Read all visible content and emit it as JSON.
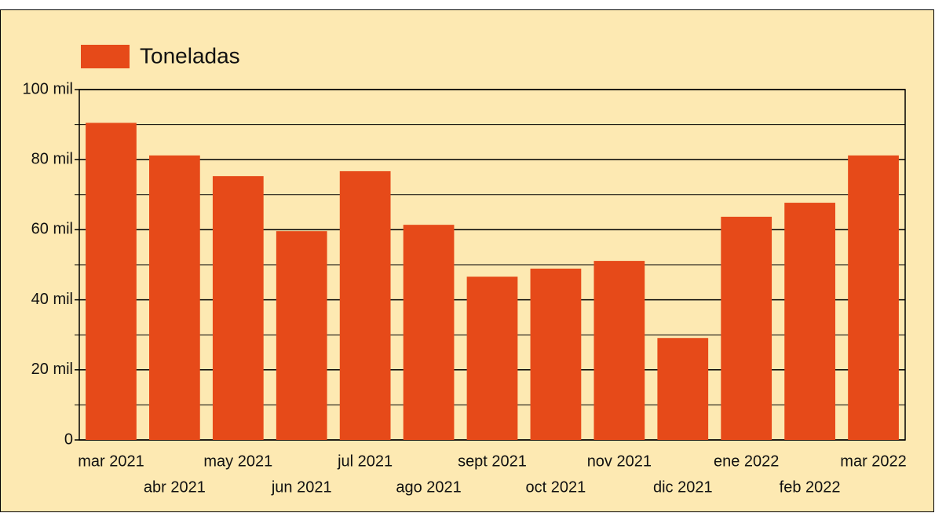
{
  "chart_data": {
    "type": "bar",
    "legend": "upper left",
    "series": [
      {
        "name": "Toneladas",
        "color": "#e64a19",
        "values": [
          90500,
          81200,
          75300,
          59600,
          76700,
          61400,
          46600,
          48900,
          51100,
          29100,
          63700,
          67700,
          81200
        ]
      }
    ],
    "categories": [
      "mar 2021",
      "abr 2021",
      "may 2021",
      "jun 2021",
      "jul 2021",
      "ago 2021",
      "sept 2021",
      "oct 2021",
      "nov 2021",
      "dic 2021",
      "ene 2022",
      "feb 2022",
      "mar 2022"
    ],
    "ylim": [
      0,
      100000
    ],
    "yticks": [
      0,
      {
        "value": 20000,
        "label": "20 mil"
      },
      {
        "value": 40000,
        "label": "40 mil"
      },
      {
        "value": 60000,
        "label": "60 mil"
      },
      {
        "value": 80000,
        "label": "80 mil"
      },
      {
        "value": 100000,
        "label": "100 mil"
      }
    ],
    "minor_yticks": [
      10000,
      30000,
      50000,
      70000,
      90000
    ],
    "grid": true
  }
}
